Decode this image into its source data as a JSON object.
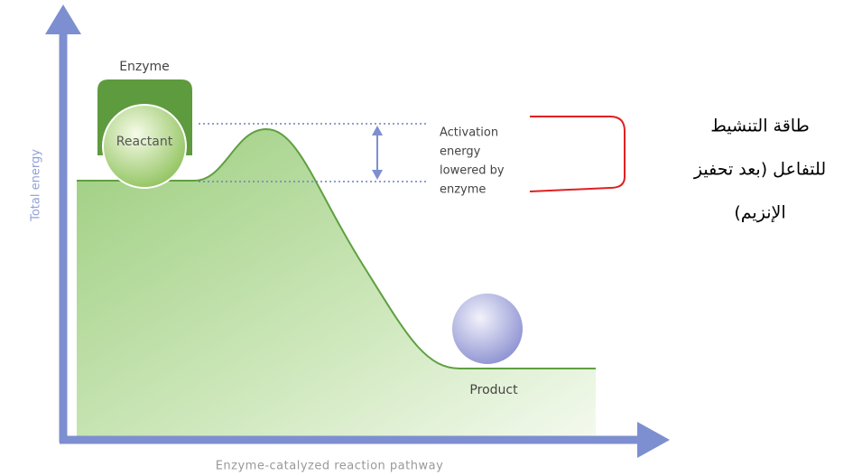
{
  "y_axis_label": "Total energy",
  "x_axis_label": "Enzyme-catalyzed reaction pathway",
  "labels": {
    "enzyme": "Enzyme",
    "reactant": "Reactant",
    "product": "Product"
  },
  "annotation": {
    "lines": [
      "Activation",
      "energy",
      "lowered by",
      "enzyme"
    ]
  },
  "arabic_note": {
    "lines": [
      "طاقة التنشيط",
      "للتفاعل (بعد تحفيز",
      "الإنزيم)"
    ]
  }
}
